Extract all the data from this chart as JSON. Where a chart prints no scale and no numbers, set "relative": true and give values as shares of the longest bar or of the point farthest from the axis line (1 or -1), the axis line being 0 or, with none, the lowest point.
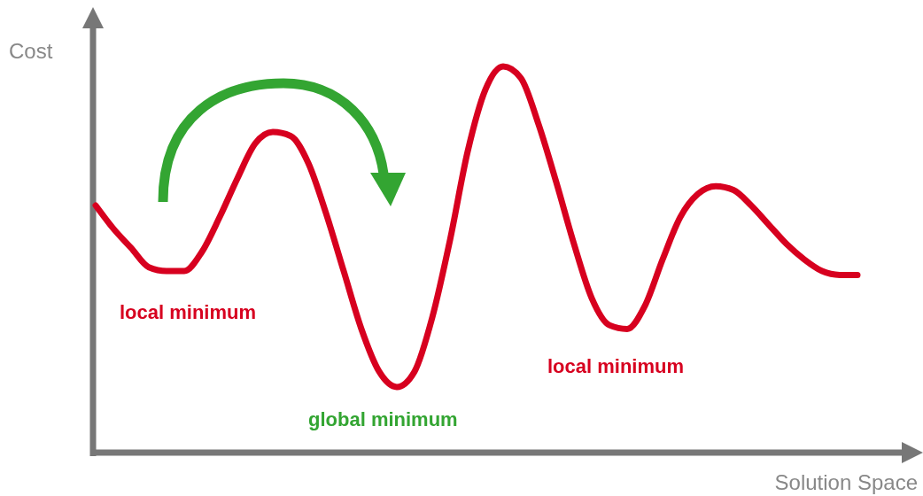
{
  "chart_data": {
    "type": "line",
    "relative": true,
    "xlabel": "Solution Space",
    "ylabel": "Cost",
    "categories": [
      null,
      null,
      null,
      null,
      null,
      null,
      null,
      null,
      null,
      null,
      null,
      null,
      null,
      null,
      null,
      null,
      null,
      null,
      null,
      null,
      null,
      null,
      null,
      null,
      null,
      null,
      null,
      null,
      null,
      null,
      null,
      null,
      null,
      null,
      null,
      null,
      null,
      null,
      null,
      null,
      null,
      null,
      null,
      null
    ],
    "series": [
      {
        "color": "#d7001f",
        "values": [
          0.64,
          0.58,
          0.53,
          0.48,
          0.47,
          0.47,
          0.52,
          0.61,
          0.71,
          0.8,
          0.83,
          0.82,
          0.75,
          0.62,
          0.47,
          0.32,
          0.21,
          0.17,
          0.21,
          0.35,
          0.55,
          0.78,
          0.94,
          1.0,
          0.97,
          0.85,
          0.7,
          0.54,
          0.4,
          0.33,
          0.32,
          0.38,
          0.5,
          0.61,
          0.67,
          0.69,
          0.68,
          0.64,
          0.59,
          0.54,
          0.5,
          0.47,
          0.46,
          0.46
        ]
      }
    ],
    "annotations": [
      "local minimum",
      "global minimum",
      "local minimum"
    ],
    "grid": false,
    "marker": "none",
    "line_style": "solid"
  }
}
